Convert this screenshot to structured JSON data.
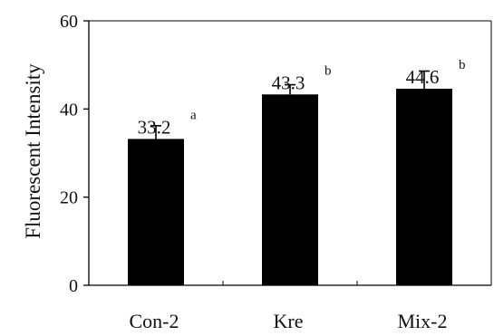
{
  "chart_data": {
    "type": "bar",
    "categories": [
      "Con-2",
      "Kre",
      "Mix-2"
    ],
    "values": [
      33.2,
      43.3,
      44.6
    ],
    "errors": [
      3.0,
      2.2,
      4.0
    ],
    "data_labels": [
      "33.2",
      "43.3",
      "44.6"
    ],
    "significance": [
      "a",
      "b",
      "b"
    ],
    "title": "",
    "xlabel": "",
    "ylabel": "Fluorescent Intensity",
    "ylim": [
      0,
      60
    ],
    "yticks": [
      0,
      20,
      40,
      60
    ],
    "ytick_labels": [
      "0",
      "20",
      "40",
      "60"
    ],
    "grid": false,
    "legend": "none",
    "bar_color": "#000000"
  }
}
